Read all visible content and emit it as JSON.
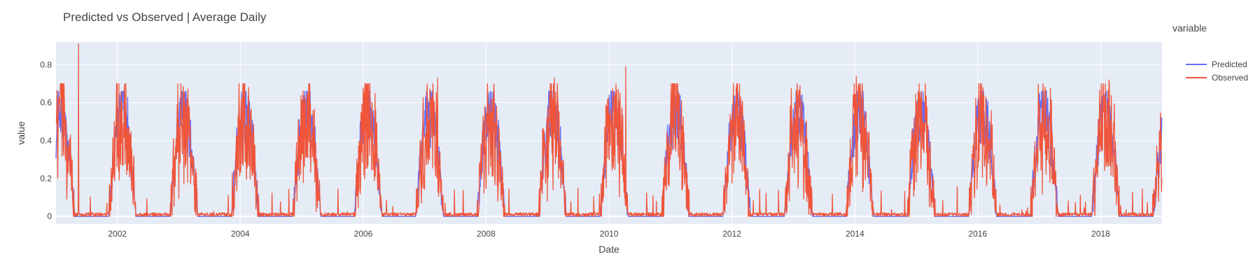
{
  "chart_data": {
    "type": "line",
    "title": "Predicted vs Observed | Average Daily",
    "xlabel": "Date",
    "ylabel": "value",
    "x_range": [
      "2001-01-01",
      "2018-12-31"
    ],
    "x_ticks": [
      "2002",
      "2004",
      "2006",
      "2008",
      "2010",
      "2012",
      "2014",
      "2016",
      "2018"
    ],
    "ylim": [
      -0.04,
      0.92
    ],
    "y_ticks": [
      "0",
      "0.2",
      "0.4",
      "0.6",
      "0.8"
    ],
    "y_tick_values": [
      0,
      0.2,
      0.4,
      0.6,
      0.8
    ],
    "grid": true,
    "plot_background": "#E5ECF6",
    "legend": {
      "title": "variable",
      "placement": "right"
    },
    "series": [
      {
        "name": "Predicted",
        "color": "#636EFA",
        "peak_typical": 0.58,
        "trough_typical": 0.0
      },
      {
        "name": "Observed",
        "color": "#EF553B",
        "peak_typical": 0.66,
        "trough_typical": 0.0
      }
    ],
    "notable_points": [
      {
        "series": "Observed",
        "date": "2001-05-15",
        "value": 0.91
      },
      {
        "series": "Observed",
        "date": "2010-04-10",
        "value": 0.79
      },
      {
        "series": "Observed",
        "date": "2007-03-20",
        "value": 0.73
      },
      {
        "series": "Observed",
        "date": "2009-02-10",
        "value": 0.73
      },
      {
        "series": "Observed",
        "date": "2014-01-10",
        "value": 0.74
      },
      {
        "series": "Observed",
        "date": "2018-02-20",
        "value": 0.72
      }
    ]
  }
}
